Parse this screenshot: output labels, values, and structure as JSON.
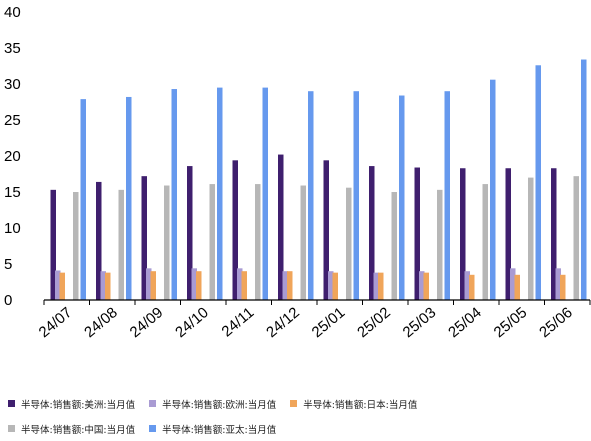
{
  "chart_data": {
    "type": "bar",
    "categories": [
      "24/07",
      "24/08",
      "24/09",
      "24/10",
      "24/11",
      "24/12",
      "25/01",
      "25/02",
      "25/03",
      "25/04",
      "25/05",
      "25/06"
    ],
    "yticks": [
      "0",
      "5",
      "10",
      "15",
      "20",
      "25",
      "30",
      "35",
      "40"
    ],
    "ylim": [
      0,
      40
    ],
    "grid": false,
    "legend_position": "bottom",
    "series": [
      {
        "name": "半导体:销售额:美洲:当月值",
        "color": "#3f1f6e",
        "values": [
          15.3,
          16.4,
          17.2,
          18.6,
          19.4,
          20.2,
          19.4,
          18.6,
          18.4,
          18.3,
          18.3,
          18.3
        ]
      },
      {
        "name": "半导体:销售额:欧洲:当月值",
        "color": "#a99bd3",
        "values": [
          4.1,
          4.0,
          4.4,
          4.4,
          4.4,
          4.0,
          4.0,
          3.8,
          4.0,
          4.0,
          4.4,
          4.4
        ]
      },
      {
        "name": "半导体:销售额:日本:当月值",
        "color": "#f0a55a",
        "values": [
          3.8,
          3.8,
          4.0,
          4.0,
          4.0,
          4.0,
          3.8,
          3.8,
          3.8,
          3.5,
          3.5,
          3.5
        ]
      },
      {
        "name": "半导体:销售额:中国:当月值",
        "color": "#b7b7b7",
        "values": [
          15.0,
          15.3,
          15.9,
          16.1,
          16.1,
          15.9,
          15.6,
          15.0,
          15.3,
          16.1,
          17.0,
          17.2
        ]
      },
      {
        "name": "半导体:销售额:亚太:当月值",
        "color": "#6699ee",
        "values": [
          27.9,
          28.2,
          29.3,
          29.5,
          29.5,
          29.0,
          29.0,
          28.4,
          29.0,
          30.6,
          32.6,
          33.4
        ]
      }
    ]
  }
}
